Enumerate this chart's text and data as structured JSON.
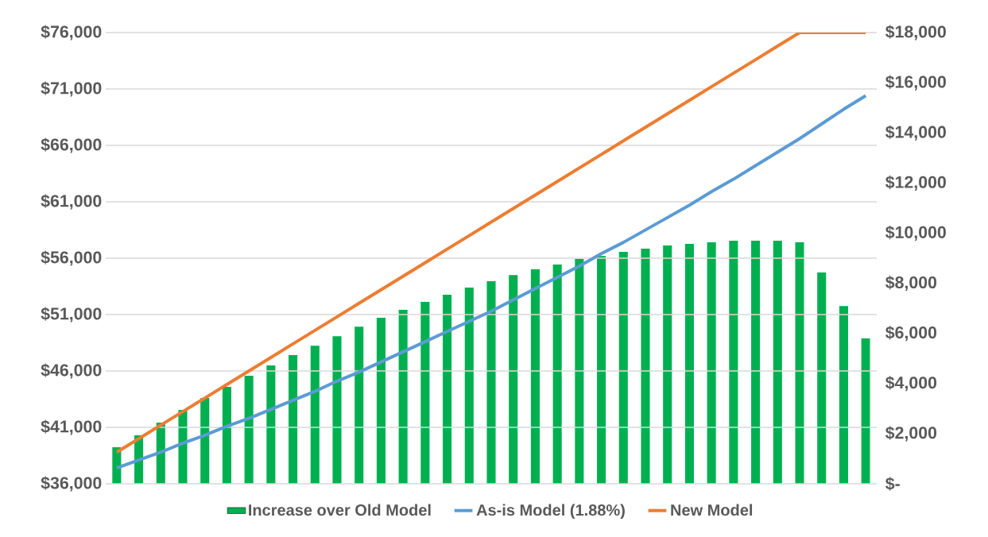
{
  "chart_data": {
    "type": "bar",
    "categories": [
      null,
      null,
      null,
      null,
      null,
      null,
      null,
      null,
      null,
      null,
      null,
      null,
      null,
      null,
      null,
      null,
      null,
      null,
      null,
      null,
      null,
      null,
      null,
      null,
      null,
      null,
      null,
      null,
      null,
      null,
      null,
      null,
      null,
      null,
      null
    ],
    "series": [
      {
        "name": "Increase over Old Model",
        "axis": "y2",
        "color": "#00b050",
        "values": [
          1460,
          1930,
          2440,
          2950,
          3420,
          3870,
          4310,
          4720,
          5130,
          5510,
          5890,
          6270,
          6620,
          6940,
          7260,
          7540,
          7830,
          8080,
          8330,
          8560,
          8750,
          8970,
          9090,
          9250,
          9380,
          9510,
          9570,
          9630,
          9700,
          9700,
          9700,
          9630,
          8430,
          7090,
          5800
        ]
      },
      {
        "name": "As-is Model (1.88%)",
        "type": "line",
        "color": "#5b9bd5",
        "values": [
          37400,
          38100,
          38800,
          39600,
          40300,
          41100,
          41800,
          42600,
          43400,
          44200,
          45100,
          45900,
          46800,
          47700,
          48600,
          49500,
          50400,
          51300,
          52300,
          53300,
          54300,
          55300,
          56400,
          57400,
          58500,
          59600,
          60700,
          61900,
          63000,
          64200,
          65400,
          66600,
          67900,
          69200,
          70400
        ]
      },
      {
        "name": "New Model",
        "type": "line",
        "color": "#ed7d31",
        "values": [
          38800,
          40000,
          41200,
          42400,
          43600,
          44800,
          46000,
          47200,
          48400,
          49600,
          50800,
          52000,
          53200,
          54400,
          55600,
          56800,
          58000,
          59200,
          60400,
          61600,
          62800,
          64000,
          65200,
          66400,
          67600,
          68800,
          70000,
          71200,
          72400,
          73600,
          74800,
          76000,
          76000,
          76000,
          76000
        ]
      }
    ],
    "ylim": [
      36000,
      76000
    ],
    "yticks": [
      {
        "value": 36000,
        "label": "$36,000"
      },
      {
        "value": 41000,
        "label": "$41,000"
      },
      {
        "value": 46000,
        "label": "$46,000"
      },
      {
        "value": 51000,
        "label": "$51,000"
      },
      {
        "value": 56000,
        "label": "$56,000"
      },
      {
        "value": 61000,
        "label": "$61,000"
      },
      {
        "value": 66000,
        "label": "$66,000"
      },
      {
        "value": 71000,
        "label": "$71,000"
      },
      {
        "value": 76000,
        "label": "$76,000"
      }
    ],
    "y2lim": [
      0,
      18000
    ],
    "y2ticks": [
      {
        "value": 0,
        "label": "$-"
      },
      {
        "value": 2000,
        "label": "$2,000"
      },
      {
        "value": 4000,
        "label": "$4,000"
      },
      {
        "value": 6000,
        "label": "$6,000"
      },
      {
        "value": 8000,
        "label": "$8,000"
      },
      {
        "value": 10000,
        "label": "$10,000"
      },
      {
        "value": 12000,
        "label": "$12,000"
      },
      {
        "value": 14000,
        "label": "$14,000"
      },
      {
        "value": 16000,
        "label": "$16,000"
      },
      {
        "value": 18000,
        "label": "$18,000"
      }
    ],
    "grid": "y",
    "legend": "bottom",
    "marker": "none"
  }
}
